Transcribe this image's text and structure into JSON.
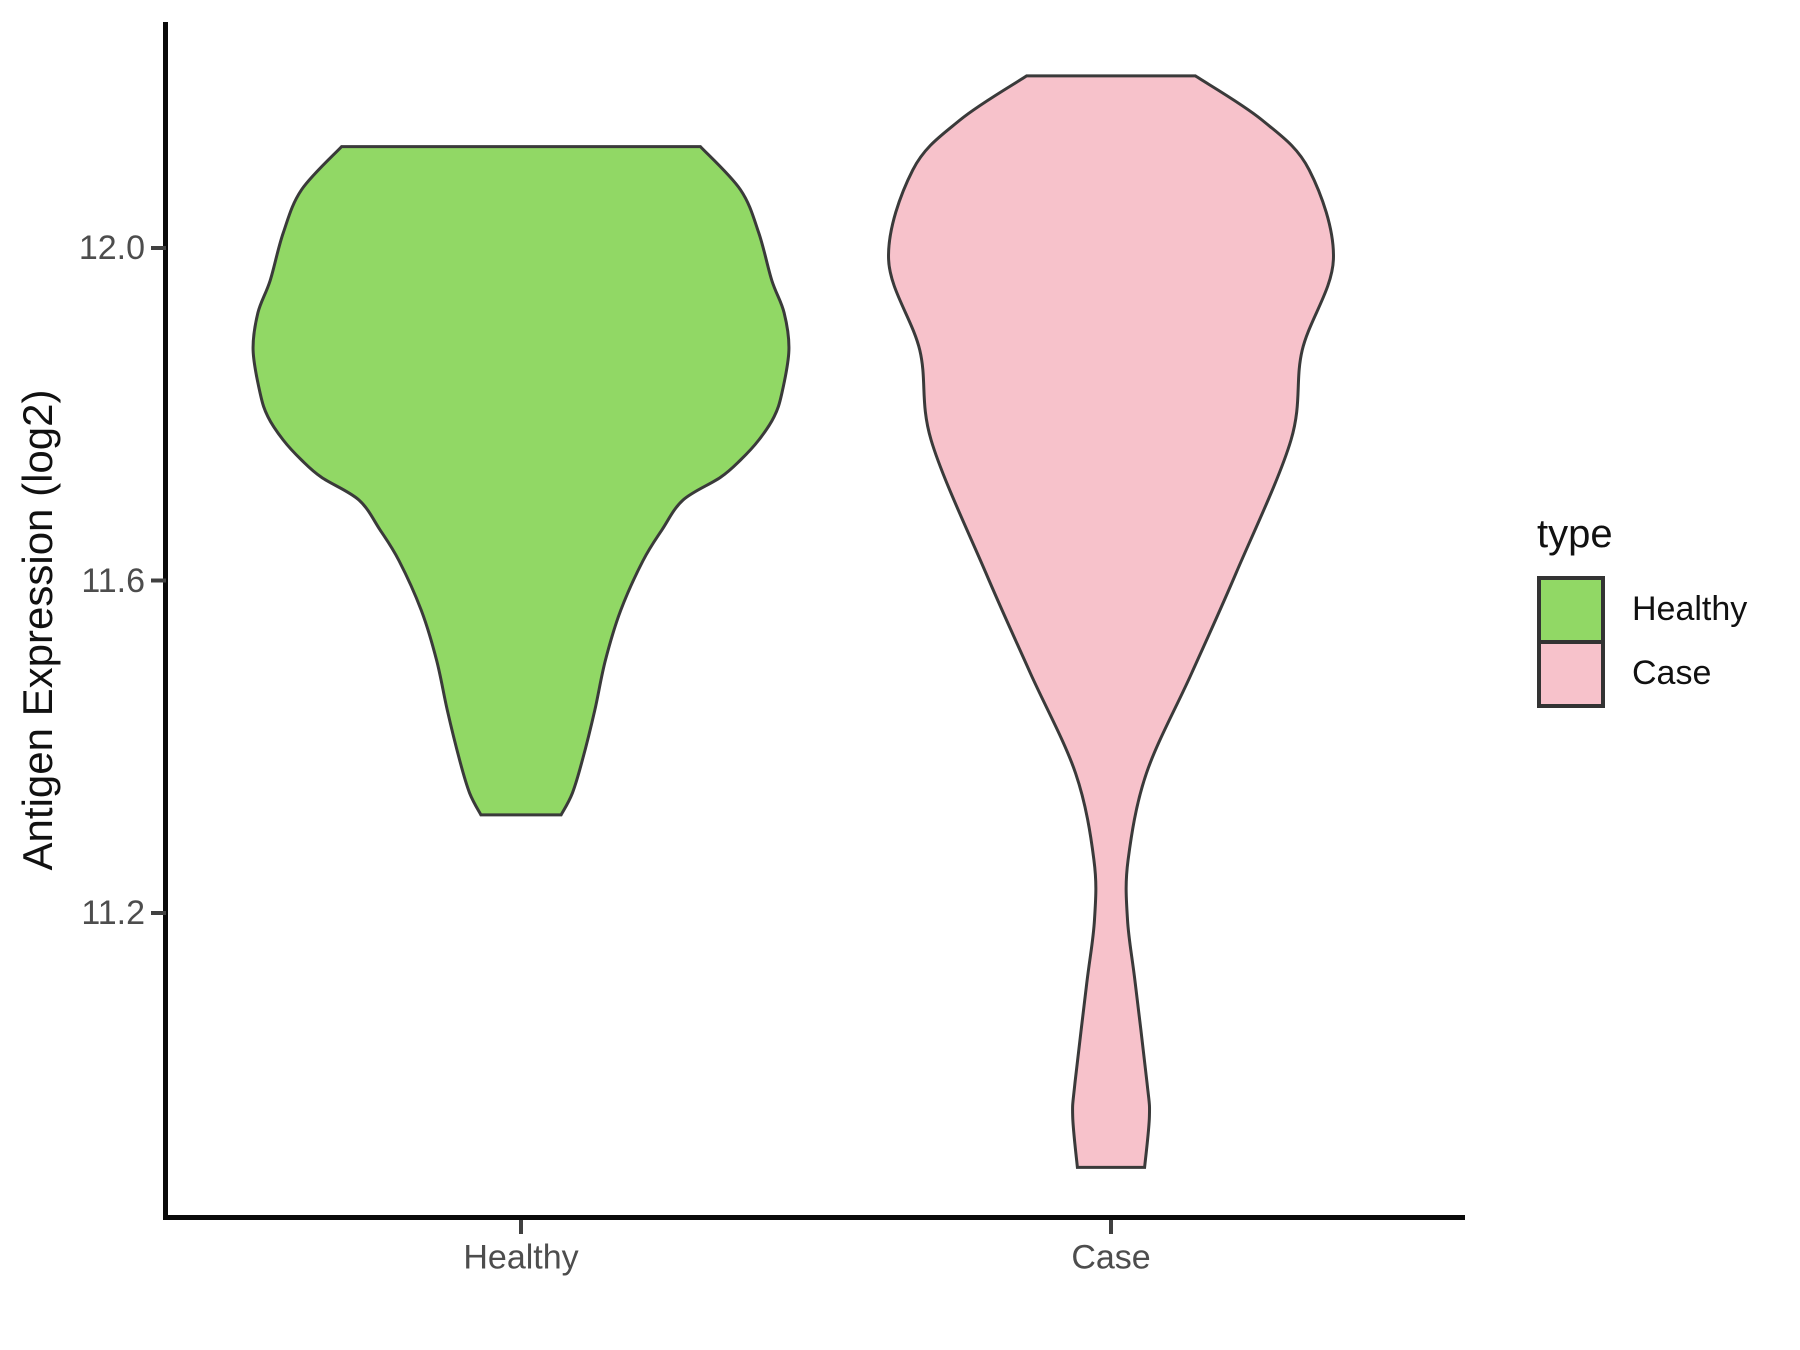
{
  "page": {
    "background": "#FFFFFF"
  },
  "chart_data": {
    "type": "violin",
    "title": "",
    "xlabel": "",
    "ylabel": "Antigen Expression (log2)",
    "categories": [
      "Healthy",
      "Case"
    ],
    "y_tick_labels": [
      "12.0",
      "11.6",
      "11.2"
    ],
    "y_ticks": [
      12.0,
      11.6,
      11.2
    ],
    "ylim": [
      10.83,
      12.27
    ],
    "grid": "off",
    "legend": {
      "title": "type",
      "position": "right",
      "entries": [
        {
          "label": "Healthy",
          "color": "#91D865"
        },
        {
          "label": "Case",
          "color": "#F7C2CB"
        }
      ]
    },
    "outline_color": "#3A3A3A",
    "axis_color": "#0A0A0A",
    "tick_color": "#404040",
    "tick_label_color": "#4D4D4D",
    "series": [
      {
        "name": "Healthy",
        "fill": "#91D865",
        "center": 1,
        "profile_v_halfwidth": [
          [
            12.122,
            0.304
          ],
          [
            12.07,
            0.372
          ],
          [
            12.018,
            0.403
          ],
          [
            11.961,
            0.425
          ],
          [
            11.922,
            0.446
          ],
          [
            11.877,
            0.454
          ],
          [
            11.825,
            0.442
          ],
          [
            11.797,
            0.429
          ],
          [
            11.769,
            0.403
          ],
          [
            11.745,
            0.372
          ],
          [
            11.724,
            0.338
          ],
          [
            11.697,
            0.275
          ],
          [
            11.661,
            0.239
          ],
          [
            11.624,
            0.207
          ],
          [
            11.564,
            0.169
          ],
          [
            11.504,
            0.143
          ],
          [
            11.444,
            0.125
          ],
          [
            11.384,
            0.104
          ],
          [
            11.344,
            0.087
          ],
          [
            11.318,
            0.068
          ]
        ]
      },
      {
        "name": "Case",
        "fill": "#F7C2CB",
        "center": 2,
        "profile_v_halfwidth": [
          [
            12.207,
            0.143
          ],
          [
            12.154,
            0.256
          ],
          [
            12.094,
            0.336
          ],
          [
            11.986,
            0.377
          ],
          [
            11.877,
            0.324
          ],
          [
            11.769,
            0.305
          ],
          [
            11.609,
            0.212
          ],
          [
            11.489,
            0.137
          ],
          [
            11.368,
            0.06
          ],
          [
            11.264,
            0.029
          ],
          [
            11.192,
            0.028
          ],
          [
            11.116,
            0.041
          ],
          [
            10.996,
            0.061
          ],
          [
            10.955,
            0.065
          ],
          [
            10.894,
            0.057
          ]
        ]
      }
    ]
  }
}
